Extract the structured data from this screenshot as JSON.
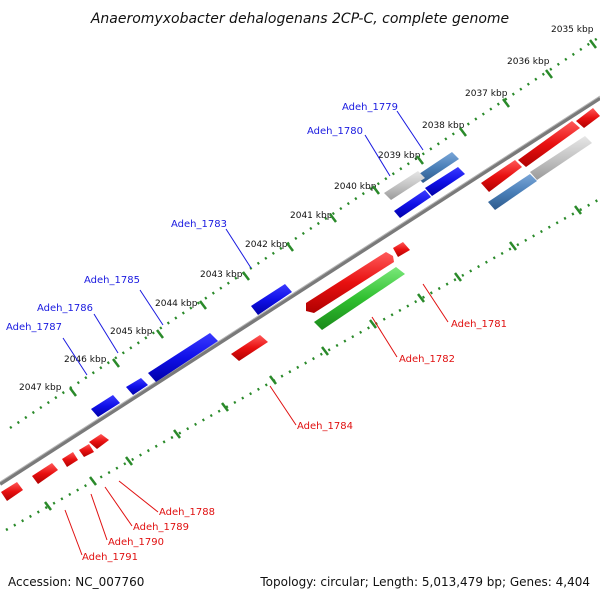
{
  "title": "Anaeromyxobacter dehalogenans 2CP-C, complete genome",
  "footer": {
    "accession": "Accession: NC_007760",
    "summary": "Topology: circular; Length: 5,013,479 bp; Genes: 4,404"
  },
  "ticks": [
    "2035 kbp",
    "2036 kbp",
    "2037 kbp",
    "2038 kbp",
    "2039 kbp",
    "2040 kbp",
    "2041 kbp",
    "2042 kbp",
    "2043 kbp",
    "2044 kbp",
    "2045 kbp",
    "2046 kbp",
    "2047 kbp"
  ],
  "genes": [
    {
      "id": "Adeh_1779",
      "strand": "plus",
      "color": "#4a7fb8"
    },
    {
      "id": "Adeh_1780",
      "strand": "plus",
      "color": "#1a1ae0"
    },
    {
      "id": "Adeh_1781",
      "strand": "minus",
      "color": "#e01010"
    },
    {
      "id": "Adeh_1782",
      "strand": "minus",
      "color": "#2ec02e"
    },
    {
      "id": "Adeh_1783",
      "strand": "plus",
      "color": "#1a1ae0"
    },
    {
      "id": "Adeh_1784",
      "strand": "minus",
      "color": "#e01010"
    },
    {
      "id": "Adeh_1785",
      "strand": "plus",
      "color": "#1a1ae0"
    },
    {
      "id": "Adeh_1786",
      "strand": "plus",
      "color": "#1a1ae0"
    },
    {
      "id": "Adeh_1787",
      "strand": "plus",
      "color": "#1a1ae0"
    },
    {
      "id": "Adeh_1788",
      "strand": "minus",
      "color": "#e01010"
    },
    {
      "id": "Adeh_1789",
      "strand": "minus",
      "color": "#e01010"
    },
    {
      "id": "Adeh_1790",
      "strand": "minus",
      "color": "#e01010"
    },
    {
      "id": "Adeh_1791",
      "strand": "minus",
      "color": "#e01010"
    }
  ]
}
